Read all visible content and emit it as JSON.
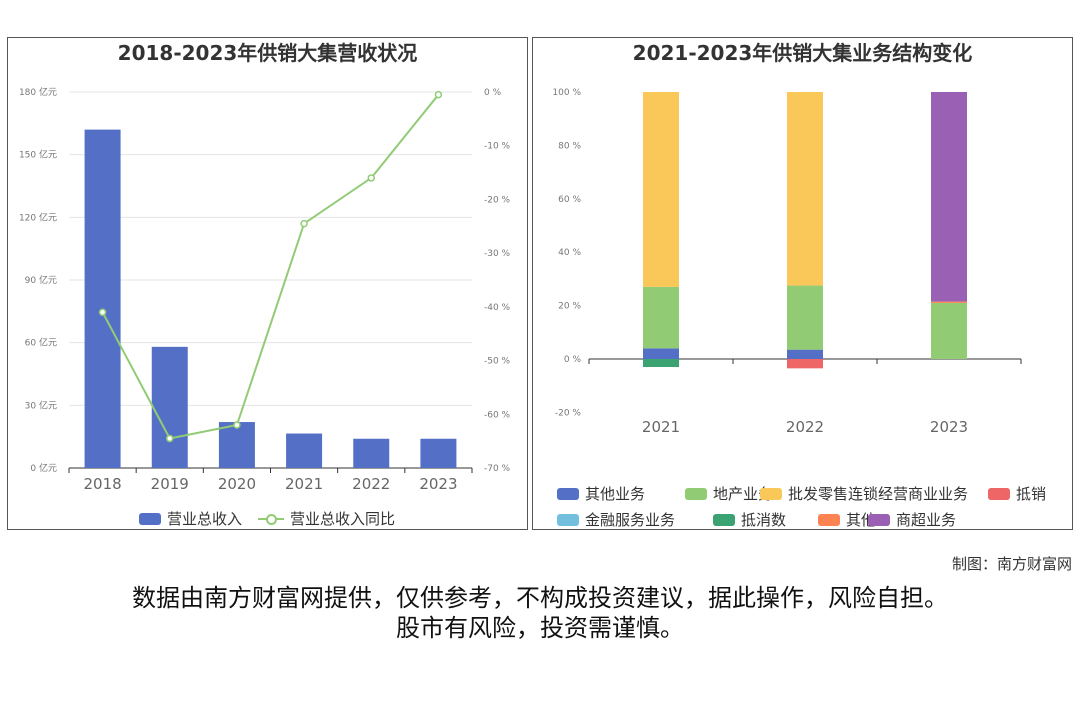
{
  "chart_data": [
    {
      "type": "bar+line",
      "title": "2018-2023年供销大集营收状况",
      "categories": [
        "2018",
        "2019",
        "2020",
        "2021",
        "2022",
        "2023"
      ],
      "y_left": {
        "ylim": [
          0,
          180
        ],
        "ticks": [
          0,
          30,
          60,
          90,
          120,
          150,
          180
        ],
        "unit": "亿元"
      },
      "y_right": {
        "ylim": [
          -70,
          0
        ],
        "ticks": [
          -70,
          -60,
          -50,
          -40,
          -30,
          -20,
          -10,
          0
        ],
        "unit": "%"
      },
      "series": [
        {
          "name": "营业总收入",
          "kind": "bar",
          "axis": "left",
          "color": "#5470c6",
          "values": [
            162,
            58,
            22,
            16.5,
            14,
            14
          ]
        },
        {
          "name": "营业总收入同比",
          "kind": "line",
          "axis": "right",
          "color": "#91cc75",
          "values": [
            -41,
            -64.5,
            -62,
            -24.5,
            -16,
            -0.5
          ]
        }
      ],
      "grid": true,
      "legend_position": "bottom"
    },
    {
      "type": "stacked-bar",
      "title": "2021-2023年供销大集业务结构变化",
      "categories": [
        "2021",
        "2022",
        "2023"
      ],
      "ylim": [
        -20,
        100
      ],
      "ticks": [
        -20,
        0,
        20,
        40,
        60,
        80,
        100
      ],
      "unit": "%",
      "series": [
        {
          "name": "其他业务",
          "color": "#5470c6",
          "values": [
            4,
            3.5,
            0
          ]
        },
        {
          "name": "地产业务",
          "color": "#91cc75",
          "values": [
            23,
            24,
            21
          ]
        },
        {
          "name": "批发零售连锁经营商业业务",
          "color": "#fac858",
          "values": [
            73,
            72.5,
            0
          ]
        },
        {
          "name": "抵销",
          "color": "#ee6666",
          "values": [
            0,
            -3.5,
            0
          ]
        },
        {
          "name": "金融服务业务",
          "color": "#73c0de",
          "values": [
            0,
            0,
            0
          ]
        },
        {
          "name": "抵消数",
          "color": "#3ba272",
          "values": [
            -3,
            0,
            0
          ]
        },
        {
          "name": "其他",
          "color": "#fc8452",
          "values": [
            0,
            0,
            0.5
          ]
        },
        {
          "name": "商超业务",
          "color": "#9a60b4",
          "values": [
            0,
            0,
            78.5
          ]
        }
      ],
      "grid": false,
      "legend_position": "bottom"
    }
  ],
  "footer": {
    "credit": "制图：南方财富网",
    "disclaimer_line1": "数据由南方财富网提供，仅供参考，不构成投资建议，据此操作，风险自担。",
    "disclaimer_line2": "股市有风险，投资需谨慎。"
  }
}
